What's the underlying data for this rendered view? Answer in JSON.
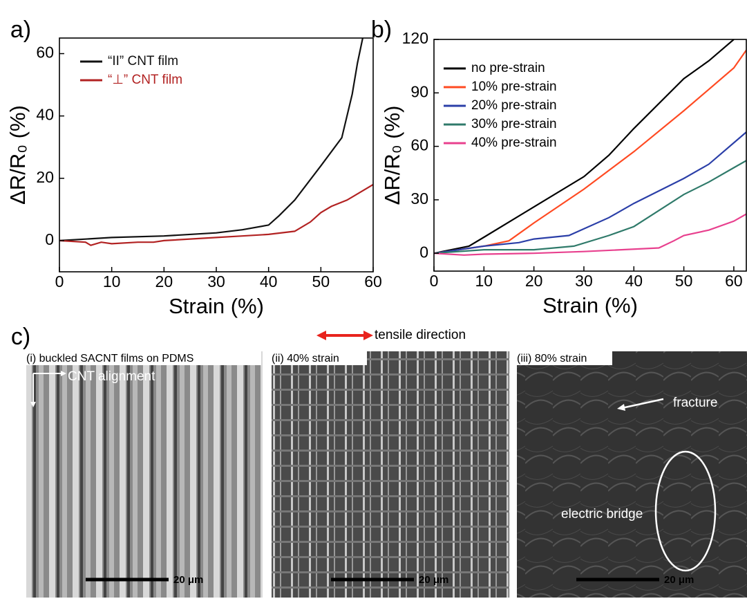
{
  "chart_data": [
    {
      "type": "line",
      "panel_label": "a)",
      "x_label": "Strain (%)",
      "y_label": "ΔR/R₀ (%)",
      "xlim": [
        0,
        60
      ],
      "ylim": [
        -10,
        65
      ],
      "xticks": [
        0,
        10,
        20,
        30,
        40,
        50,
        60
      ],
      "yticks": [
        0,
        20,
        40,
        60
      ],
      "legend_position": "upper left",
      "series": [
        {
          "name": "“II” CNT film",
          "color": "#111111",
          "x": [
            0,
            5,
            10,
            20,
            30,
            35,
            40,
            42,
            45,
            50,
            54,
            56,
            57,
            58
          ],
          "values": [
            0,
            0.5,
            1,
            1.5,
            2.5,
            3.5,
            5,
            8,
            13,
            24,
            33,
            47,
            57,
            65
          ]
        },
        {
          "name": "“⊥” CNT film",
          "color": "#b22222",
          "x": [
            0,
            5,
            6,
            8,
            10,
            15,
            18,
            20,
            30,
            35,
            40,
            45,
            48,
            50,
            52,
            55,
            60
          ],
          "values": [
            0,
            -0.5,
            -1.5,
            -0.5,
            -1,
            -0.5,
            -0.5,
            0,
            1,
            1.5,
            2,
            3,
            6,
            9,
            11,
            13,
            18
          ]
        }
      ]
    },
    {
      "type": "line",
      "panel_label": "b)",
      "x_label": "Strain (%)",
      "y_label": "ΔR/R₀ (%)",
      "xlim": [
        0,
        62.5
      ],
      "ylim": [
        -10,
        120
      ],
      "xticks": [
        0,
        10,
        20,
        30,
        40,
        50,
        60
      ],
      "yticks": [
        0,
        30,
        60,
        90,
        120
      ],
      "legend_position": "upper left",
      "series": [
        {
          "name": "no pre-strain",
          "color": "#000000",
          "x": [
            0,
            7,
            10,
            20,
            30,
            35,
            40,
            50,
            55,
            60
          ],
          "values": [
            0,
            4,
            9,
            26,
            43,
            55,
            70,
            98,
            108,
            120
          ]
        },
        {
          "name": "10% pre-strain",
          "color": "#ff4a22",
          "x": [
            0,
            10,
            15,
            20,
            30,
            40,
            50,
            55,
            60,
            62.5
          ],
          "values": [
            0,
            4,
            7,
            17,
            36,
            57,
            80,
            92,
            104,
            114
          ]
        },
        {
          "name": "20% pre-strain",
          "color": "#2b3fa8",
          "x": [
            0,
            10,
            17,
            20,
            27,
            35,
            40,
            50,
            55,
            60,
            62.5
          ],
          "values": [
            0,
            4,
            6,
            8,
            10,
            20,
            28,
            42,
            50,
            62,
            68
          ]
        },
        {
          "name": "30% pre-strain",
          "color": "#2f7a6a",
          "x": [
            0,
            10,
            20,
            28,
            35,
            40,
            45,
            50,
            55,
            60,
            62.5
          ],
          "values": [
            0,
            2,
            2,
            4,
            10,
            15,
            24,
            33,
            40,
            48,
            52
          ]
        },
        {
          "name": "40% pre-strain",
          "color": "#e8408e",
          "x": [
            0,
            6,
            10,
            20,
            30,
            45,
            48,
            50,
            55,
            60,
            62.5
          ],
          "values": [
            0,
            -1,
            -0.5,
            0,
            1,
            3,
            7,
            10,
            13,
            18,
            22
          ]
        }
      ]
    }
  ],
  "micrographs": {
    "panel_label": "c)",
    "direction": "tensile direction",
    "images": [
      {
        "caption": "(i) buckled SACNT films on PDMS",
        "scale": "20 μm",
        "annotations": [
          "CNT alignment"
        ]
      },
      {
        "caption": "(ii) 40% strain",
        "scale": "20 μm",
        "annotations": []
      },
      {
        "caption": "(iii) 80% strain",
        "scale": "20 μm",
        "annotations": [
          "fracture",
          "electric bridge"
        ]
      }
    ]
  }
}
